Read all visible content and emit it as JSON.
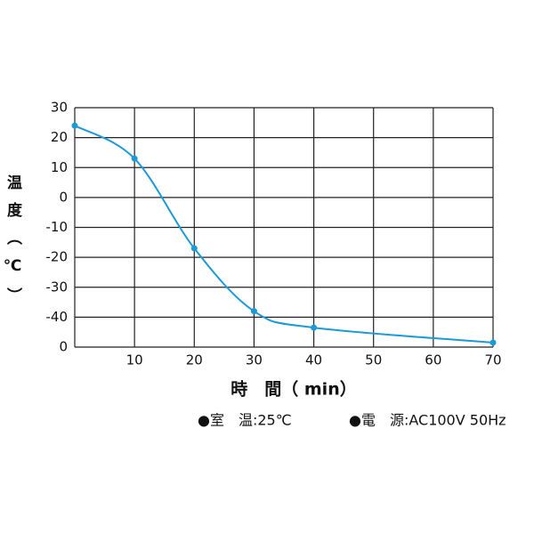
{
  "chart_data": {
    "type": "line",
    "ylabel": "温度（℃）",
    "xlabel": "時　間（ min）",
    "notes": [
      "●室　温:25℃",
      "●電　源:AC100V 50Hz"
    ],
    "x": [
      0,
      10,
      20,
      30,
      40,
      70
    ],
    "series": [
      {
        "color": "#1a9ad6",
        "values": [
          24,
          13,
          -17,
          -38,
          -43.5,
          -48.5
        ]
      }
    ],
    "xlim": [
      0,
      70
    ],
    "xticks": [
      10,
      20,
      30,
      40,
      50,
      60,
      70
    ],
    "ylim": [
      -50,
      30
    ],
    "yticks": [
      30,
      20,
      10,
      0,
      -10,
      -20,
      -30,
      -40,
      {
        "value": -50,
        "label": "0"
      }
    ],
    "grid": true
  }
}
